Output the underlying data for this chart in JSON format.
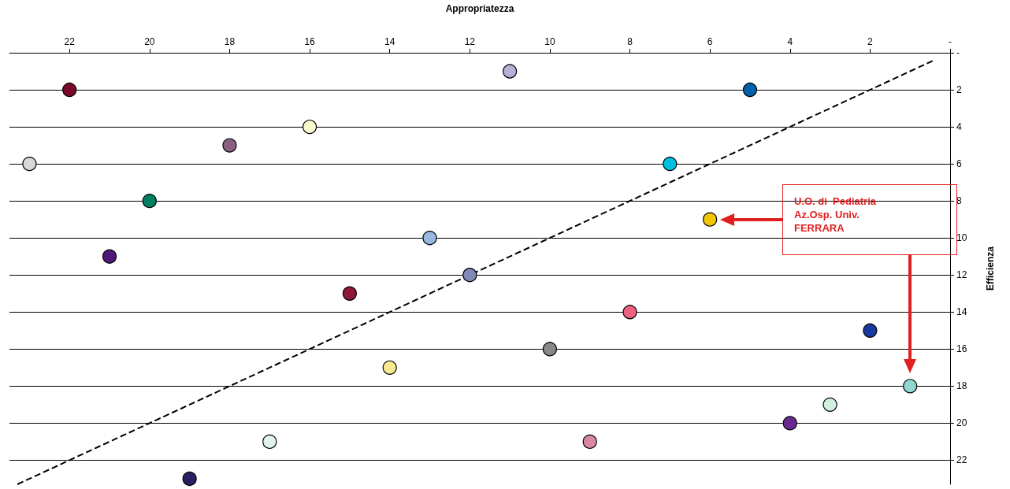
{
  "chart_data": {
    "type": "scatter",
    "xlabel": "Appropriatezza",
    "ylabel": "Efficienza",
    "xlim": [
      23.5,
      0
    ],
    "xticks": [
      {
        "value": 0,
        "label": "-"
      },
      2,
      4,
      6,
      8,
      10,
      12,
      14,
      16,
      18,
      20,
      22
    ],
    "ylim": [
      23.3,
      0
    ],
    "yticks": [
      {
        "value": 0,
        "label": "-"
      },
      2,
      4,
      6,
      8,
      10,
      12,
      14,
      16,
      18,
      20,
      22
    ],
    "grid": "y",
    "marker": "circle",
    "series": [
      {
        "x": [
          11,
          22,
          5,
          16,
          18,
          23,
          7,
          20,
          6,
          13,
          21,
          12,
          15,
          8,
          2,
          10,
          14,
          1,
          3,
          4,
          17,
          9,
          19
        ],
        "values": [
          1,
          2,
          2,
          4,
          5,
          6,
          6,
          8,
          9,
          10,
          11,
          12,
          13,
          14,
          15,
          16,
          17,
          18,
          19,
          20,
          21,
          21,
          23
        ],
        "colors": [
          "#b4b0d8",
          "#7a0a2a",
          "#0060a8",
          "#fafad0",
          "#8a6080",
          "#d8d8d8",
          "#00c0e0",
          "#008060",
          "#f0c800",
          "#98b8e0",
          "#501878",
          "#8088b8",
          "#901838",
          "#f06080",
          "#1838a0",
          "#888888",
          "#f8e890",
          "#90d8d0",
          "#d0f0e0",
          "#6a2890",
          "#e0f4ec",
          "#d888a0",
          "#282060"
        ]
      },
      {
        "type": "line",
        "x": [
          23.3,
          0.4
        ],
        "values": [
          23.3,
          0.4
        ],
        "color": "#000000",
        "line_style": "dashed",
        "marker": "none"
      }
    ],
    "annotations": [
      "U.O. di  Pediatria\nAz.Osp. Univ.\nFERRARA"
    ]
  }
}
